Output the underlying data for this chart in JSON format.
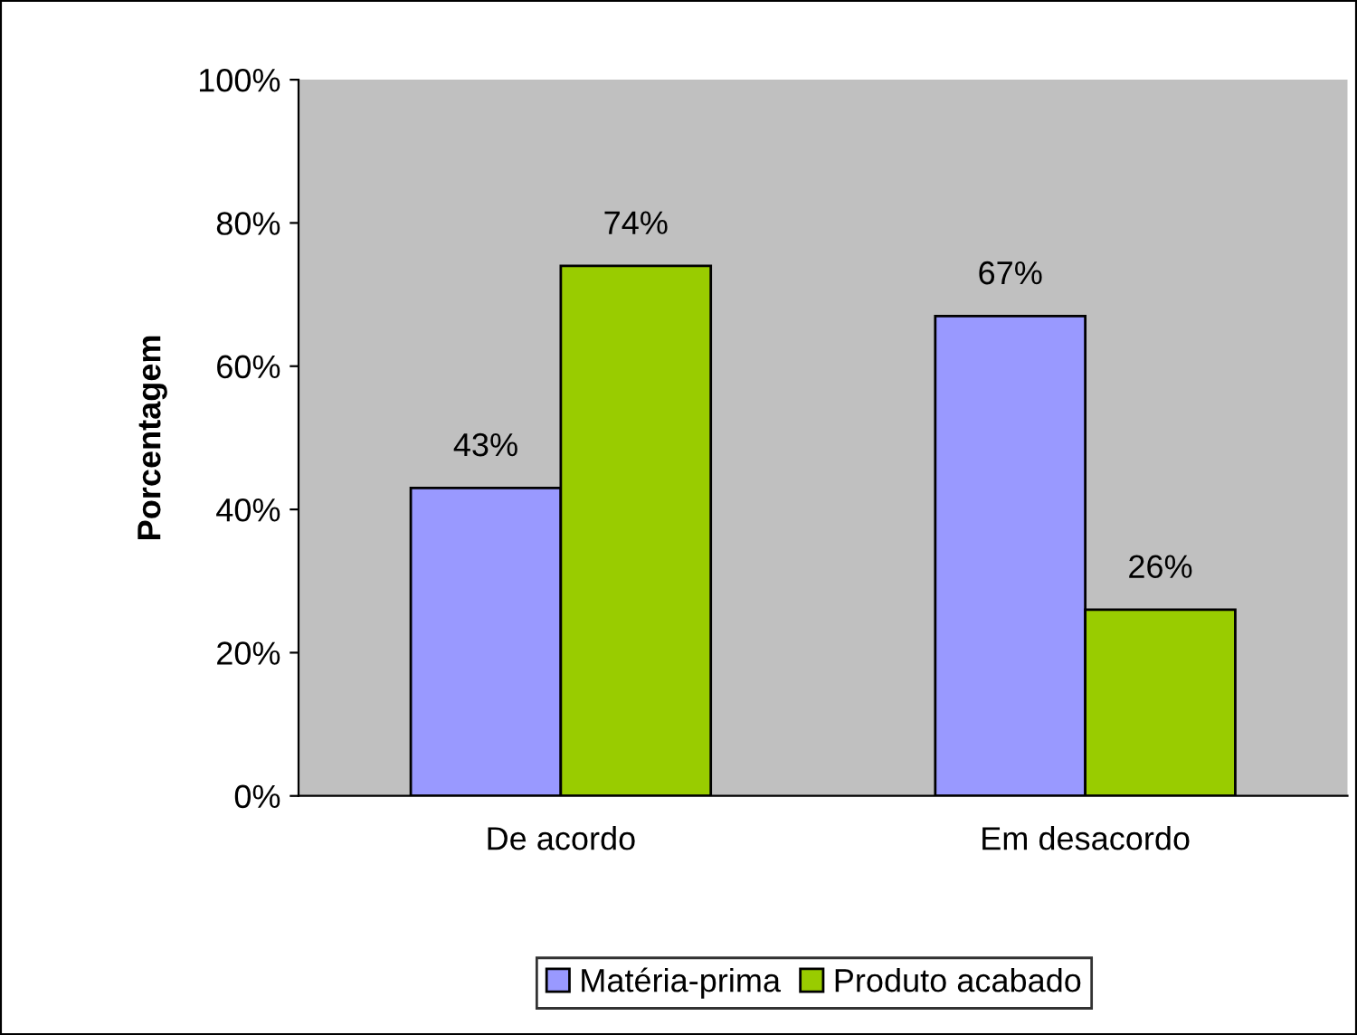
{
  "chart_data": {
    "type": "bar",
    "ylabel": "Porcentagem",
    "categories": [
      "De acordo",
      "Em desacordo"
    ],
    "series": [
      {
        "name": "Matéria-prima",
        "color": "#9999ff",
        "values": [
          43,
          67
        ],
        "value_labels": [
          "43%",
          "67%"
        ]
      },
      {
        "name": "Produto acabado",
        "color": "#99cc00",
        "values": [
          74,
          26
        ],
        "value_labels": [
          "74%",
          "26%"
        ]
      }
    ],
    "ylim": [
      0,
      100
    ],
    "yticks": [
      {
        "value": 0,
        "label": "0%"
      },
      {
        "value": 20,
        "label": "20%"
      },
      {
        "value": 40,
        "label": "40%"
      },
      {
        "value": 60,
        "label": "60%"
      },
      {
        "value": 80,
        "label": "80%"
      },
      {
        "value": 100,
        "label": "100%"
      }
    ],
    "grid": false,
    "legend": "bottom"
  }
}
